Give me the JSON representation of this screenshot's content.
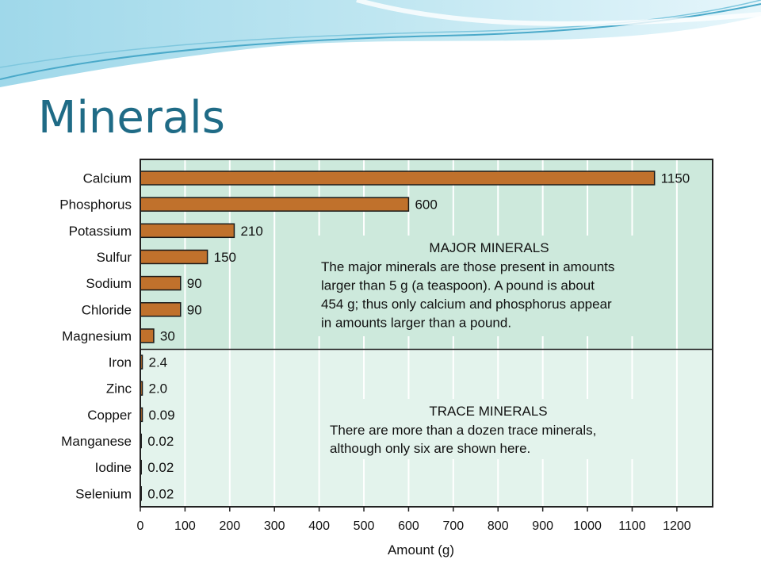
{
  "slide": {
    "title": "Minerals"
  },
  "colors": {
    "bar": "#c0712c",
    "major_bg": "#cde9dc",
    "trace_bg": "#e3f3ec",
    "title": "#1f6b86"
  },
  "chart_data": {
    "type": "bar",
    "orientation": "horizontal",
    "categories": [
      "Calcium",
      "Phosphorus",
      "Potassium",
      "Sulfur",
      "Sodium",
      "Chloride",
      "Magnesium",
      "Iron",
      "Zinc",
      "Copper",
      "Manganese",
      "Iodine",
      "Selenium"
    ],
    "values": [
      1150,
      600,
      210,
      150,
      90,
      90,
      30,
      2.4,
      2.0,
      0.09,
      0.02,
      0.02,
      0.02
    ],
    "value_labels": [
      "1150",
      "600",
      "210",
      "150",
      "90",
      "90",
      "30",
      "2.4",
      "2.0",
      "0.09",
      "0.02",
      "0.02",
      "0.02"
    ],
    "xlabel": "Amount (g)",
    "xlim": [
      0,
      1280
    ],
    "xticks": [
      0,
      100,
      200,
      300,
      400,
      500,
      600,
      700,
      800,
      900,
      1000,
      1100,
      1200
    ],
    "grid": "vertical",
    "groups": [
      {
        "name": "MAJOR MINERALS",
        "count": 7,
        "text": [
          "The major minerals are those present in amounts",
          "larger than 5 g (a teaspoon).  A pound is about",
          "454 g; thus only calcium and phosphorus appear",
          "in amounts larger than a pound."
        ]
      },
      {
        "name": "TRACE MINERALS",
        "count": 6,
        "text": [
          "There are more than a dozen trace minerals,",
          "although only six are shown here."
        ]
      }
    ]
  }
}
